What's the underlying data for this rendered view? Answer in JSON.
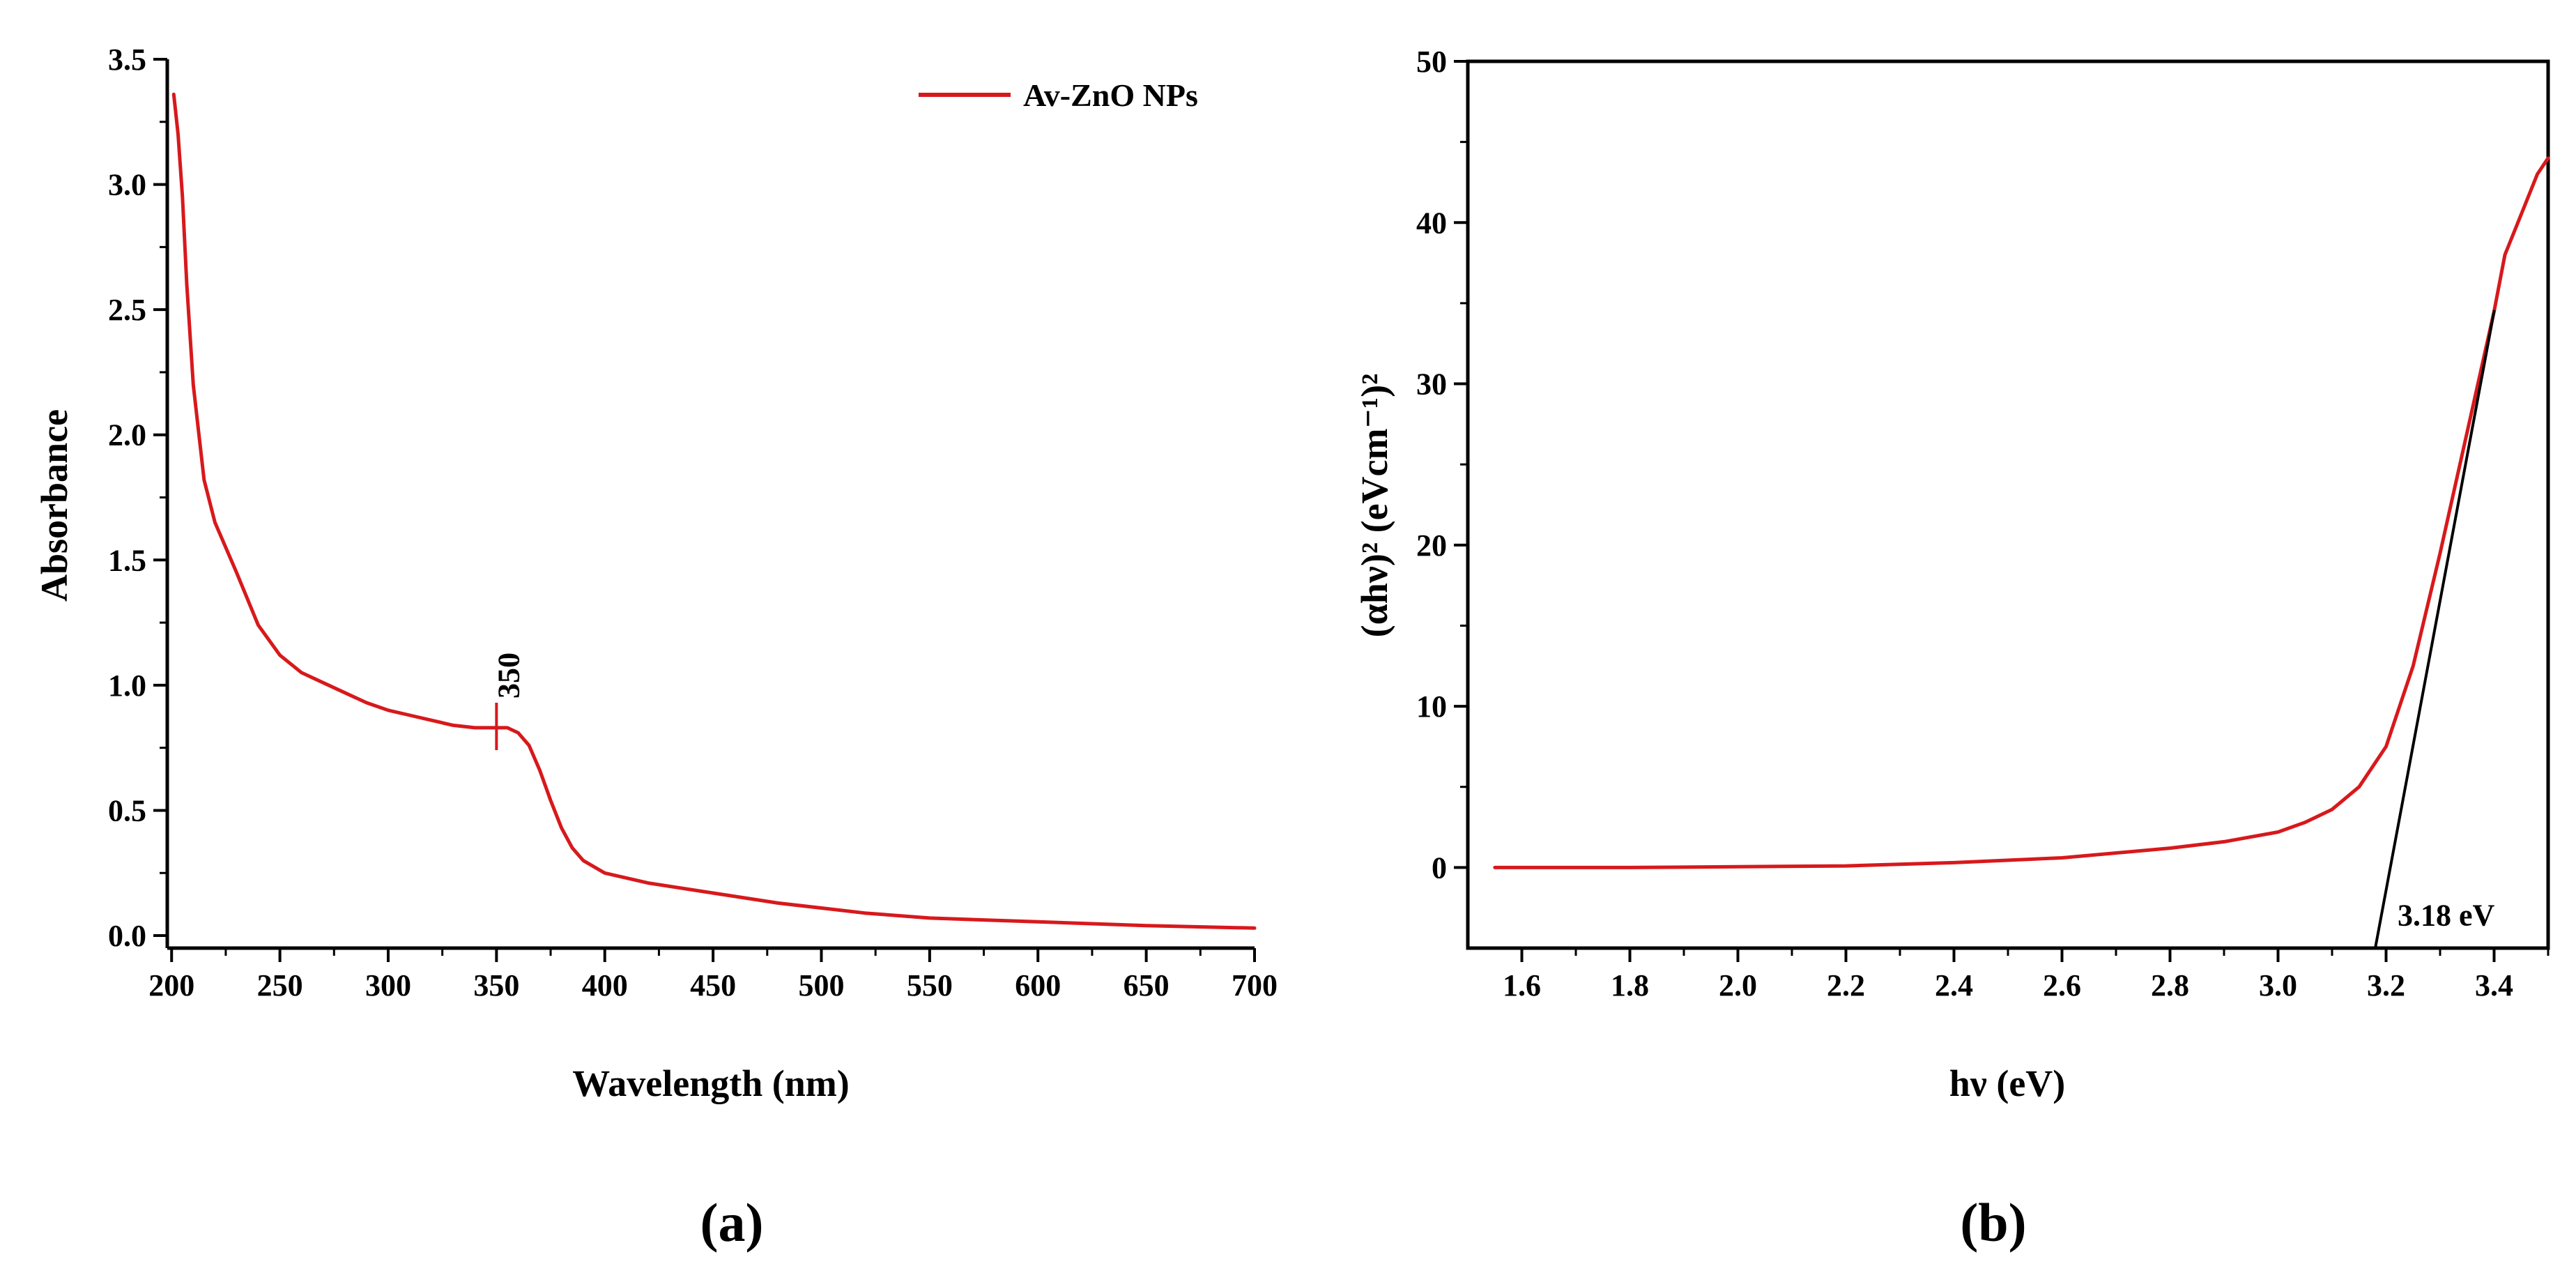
{
  "chart_data": [
    {
      "panel": "(a)",
      "type": "line",
      "xlabel": "Wavelength (nm)",
      "ylabel": "Absorbance",
      "xlim": [
        198,
        700
      ],
      "ylim": [
        -0.05,
        3.5
      ],
      "x_ticks": [
        200,
        250,
        300,
        350,
        400,
        450,
        500,
        550,
        600,
        650,
        700
      ],
      "y_ticks": [
        0.0,
        0.5,
        1.0,
        1.5,
        2.0,
        2.5,
        3.0,
        3.5
      ],
      "x_tick_labels": [
        "200",
        "250",
        "300",
        "350",
        "400",
        "450",
        "500",
        "550",
        "600",
        "650",
        "700"
      ],
      "y_tick_labels": [
        "0.0",
        "0.5",
        "1.0",
        "1.5",
        "2.0",
        "2.5",
        "3.0",
        "3.5"
      ],
      "grid": false,
      "legend": {
        "placement": "top-right",
        "entries": [
          "Av-ZnO NPs"
        ]
      },
      "annotations": [
        {
          "text": "350",
          "x": 350,
          "y": 0.83
        }
      ],
      "series": [
        {
          "name": "Av-ZnO NPs",
          "color": "#d7191c",
          "x": [
            201,
            203,
            205,
            207,
            210,
            215,
            220,
            230,
            240,
            250,
            260,
            270,
            280,
            290,
            300,
            310,
            320,
            330,
            340,
            350,
            355,
            360,
            365,
            370,
            375,
            380,
            385,
            390,
            400,
            420,
            450,
            480,
            500,
            520,
            550,
            600,
            650,
            700
          ],
          "y": [
            3.36,
            3.2,
            2.95,
            2.6,
            2.2,
            1.82,
            1.65,
            1.45,
            1.24,
            1.12,
            1.05,
            1.01,
            0.97,
            0.93,
            0.9,
            0.88,
            0.86,
            0.84,
            0.83,
            0.83,
            0.83,
            0.81,
            0.76,
            0.66,
            0.54,
            0.43,
            0.35,
            0.3,
            0.25,
            0.21,
            0.17,
            0.13,
            0.11,
            0.09,
            0.07,
            0.055,
            0.04,
            0.03
          ]
        }
      ]
    },
    {
      "panel": "(b)",
      "type": "line",
      "xlabel": "hν (eV)",
      "ylabel": "(αhν)² (eVcm⁻¹)²",
      "xlim": [
        1.5,
        3.5
      ],
      "ylim": [
        -5,
        50
      ],
      "x_ticks": [
        1.6,
        1.8,
        2.0,
        2.2,
        2.4,
        2.6,
        2.8,
        3.0,
        3.2,
        3.4
      ],
      "y_ticks": [
        0,
        10,
        20,
        30,
        40,
        50
      ],
      "x_tick_labels": [
        "1.6",
        "1.8",
        "2.0",
        "2.2",
        "2.4",
        "2.6",
        "2.8",
        "3.0",
        "3.2",
        "3.4"
      ],
      "y_tick_labels": [
        "0",
        "10",
        "20",
        "30",
        "40",
        "50"
      ],
      "grid": false,
      "annotations": [
        {
          "text": "3.18 eV",
          "x": 3.18,
          "y": -3
        }
      ],
      "series": [
        {
          "color": "#d7191c",
          "x": [
            1.55,
            1.8,
            2.0,
            2.2,
            2.4,
            2.6,
            2.8,
            2.9,
            3.0,
            3.05,
            3.1,
            3.15,
            3.2,
            3.25,
            3.3,
            3.35,
            3.4,
            3.42,
            3.45,
            3.48,
            3.5
          ],
          "y": [
            0,
            0,
            0.05,
            0.1,
            0.3,
            0.6,
            1.2,
            1.6,
            2.2,
            2.8,
            3.6,
            5.0,
            7.5,
            12.5,
            19.5,
            27,
            34.5,
            38,
            40.5,
            43,
            44
          ]
        },
        {
          "type": "tangent",
          "color": "#000000",
          "x": [
            3.18,
            3.4
          ],
          "y": [
            -5,
            34.5
          ]
        }
      ]
    }
  ]
}
